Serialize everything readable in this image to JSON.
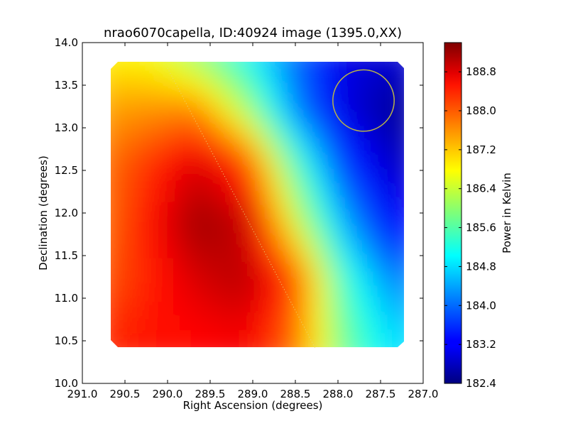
{
  "chart_data": {
    "type": "heatmap",
    "title": "nrao6070capella, ID:40924 image (1395.0,XX)",
    "xlabel": "Right Ascension (degrees)",
    "ylabel": "Declination (degrees)",
    "xlim": [
      291.0,
      287.0
    ],
    "ylim": [
      10.0,
      14.0
    ],
    "x_ticks": [
      "291.0",
      "290.5",
      "290.0",
      "289.5",
      "289.0",
      "288.5",
      "288.0",
      "287.5",
      "287.0"
    ],
    "y_ticks": [
      "10.0",
      "10.5",
      "11.0",
      "11.5",
      "12.0",
      "12.5",
      "13.0",
      "13.5",
      "14.0"
    ],
    "image_extent": {
      "ra": [
        290.67,
        287.25
      ],
      "dec": [
        10.42,
        13.77
      ]
    },
    "colormap": "jet",
    "colorbar": {
      "label": "Power in Kelvin",
      "range": [
        182.4,
        189.4
      ],
      "ticks": [
        "182.4",
        "183.2",
        "184.0",
        "184.8",
        "185.6",
        "186.4",
        "187.2",
        "188.0",
        "188.8"
      ]
    },
    "value_grid": {
      "ra": [
        290.67,
        290.1,
        289.53,
        288.96,
        288.39,
        287.82,
        287.25
      ],
      "dec": [
        13.77,
        13.1,
        12.43,
        11.76,
        11.09,
        10.42
      ],
      "values": [
        [
          186.8,
          186.7,
          185.9,
          185.0,
          184.0,
          183.1,
          183.0
        ],
        [
          187.4,
          187.5,
          187.6,
          186.2,
          184.2,
          183.1,
          182.6
        ],
        [
          187.7,
          188.2,
          188.8,
          188.2,
          185.6,
          183.7,
          182.9
        ],
        [
          187.7,
          188.4,
          189.2,
          188.9,
          186.6,
          184.5,
          183.3
        ],
        [
          187.9,
          188.3,
          188.8,
          189.0,
          188.1,
          185.4,
          184.2
        ],
        [
          188.2,
          188.4,
          188.5,
          188.6,
          187.8,
          185.8,
          184.8
        ]
      ]
    },
    "annotations": [
      {
        "kind": "circle",
        "center_ra": 287.7,
        "center_dec": 13.32,
        "radius_deg": 0.36,
        "color": "#b9b347"
      },
      {
        "kind": "dotted-line",
        "from_ra": 290.0,
        "from_dec": 13.7,
        "to_ra": 288.27,
        "to_dec": 10.42,
        "color": "#e8d87a"
      }
    ],
    "grid": false
  }
}
